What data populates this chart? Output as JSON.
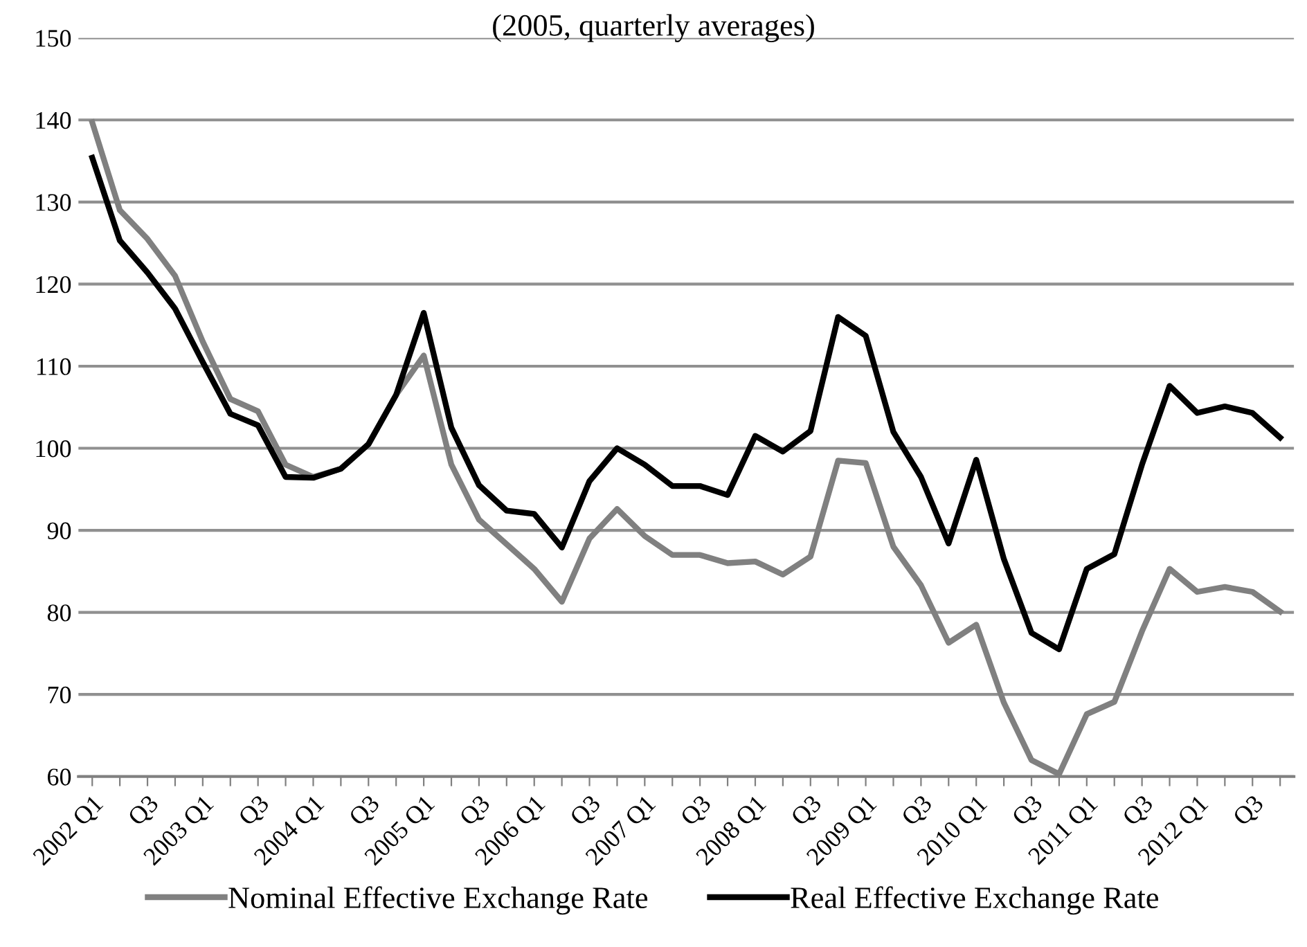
{
  "chart_data": {
    "type": "line",
    "title": "(2005, quarterly averages)",
    "categories": [
      "2002 Q1",
      null,
      "Q3",
      null,
      "2003 Q1",
      null,
      "Q3",
      null,
      "2004 Q1",
      null,
      "Q3",
      null,
      "2005 Q1",
      null,
      "Q3",
      null,
      "2006 Q1",
      null,
      "Q3",
      null,
      "2007 Q1",
      null,
      "Q3",
      null,
      "2008 Q1",
      null,
      "Q3",
      null,
      "2009 Q1",
      null,
      "Q3",
      null,
      "2010 Q1",
      null,
      "Q3",
      null,
      "2011 Q1",
      null,
      "Q3",
      null,
      "2012 Q1",
      null,
      "Q3",
      null
    ],
    "series": [
      {
        "name": "Nominal Effective Exchange Rate",
        "color": "#808080",
        "values": [
          139.7,
          129,
          125.5,
          121,
          113,
          106,
          104.5,
          98,
          96.5,
          97.5,
          100.5,
          106.5,
          111.3,
          98,
          91.3,
          88.3,
          85.3,
          81.3,
          89,
          92.6,
          89.3,
          87,
          87,
          86,
          86.2,
          84.6,
          86.8,
          98.5,
          98.2,
          88,
          83.3,
          76.3,
          78.5,
          69,
          62,
          60.3,
          67.6,
          69.1,
          77.7,
          85.3,
          82.5,
          83.1,
          82.5,
          80.1
        ]
      },
      {
        "name": "Real Effective Exchange Rate",
        "color": "#000000",
        "values": [
          135.4,
          125.3,
          121.4,
          117,
          110.5,
          104.2,
          102.8,
          96.5,
          96.4,
          97.5,
          100.5,
          106.5,
          116.5,
          102.5,
          95.5,
          92.4,
          92,
          87.9,
          96,
          100,
          98,
          95.4,
          95.4,
          94.3,
          101.5,
          99.6,
          102.1,
          116,
          113.7,
          102,
          96.5,
          88.4,
          98.6,
          86.5,
          77.5,
          75.5,
          85.3,
          87.1,
          98,
          107.6,
          104.3,
          105.1,
          104.3,
          101.3
        ]
      }
    ],
    "ylim": [
      60,
      150
    ],
    "yticks": [
      60,
      70,
      80,
      90,
      100,
      110,
      120,
      130,
      140,
      150
    ],
    "grid": "y",
    "legend": "bottom",
    "marker": "none",
    "line_style": "solid"
  }
}
